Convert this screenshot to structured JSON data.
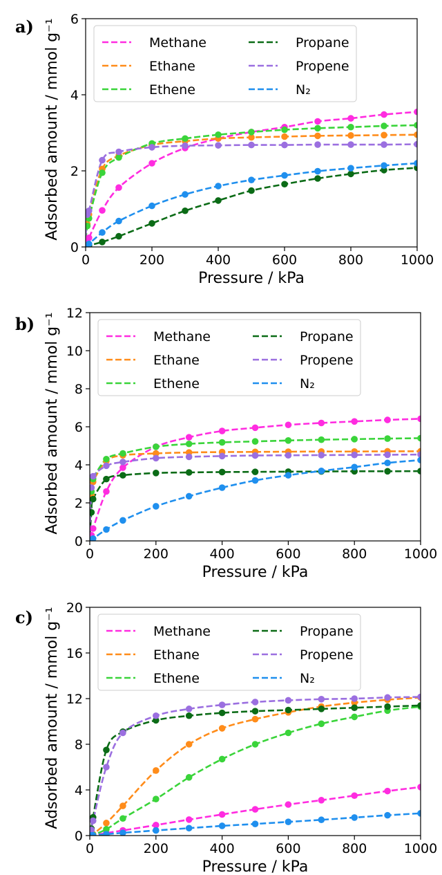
{
  "chart_data": [
    {
      "panel": "a)",
      "type": "line",
      "xlabel": "Pressure / kPa",
      "ylabel": "Adsorbed amount / mmol g⁻¹",
      "xlim": [
        0,
        1000
      ],
      "ylim": [
        0,
        6
      ],
      "xticks": [
        0,
        200,
        400,
        600,
        800,
        1000
      ],
      "yticks": [
        0,
        2,
        4,
        6
      ],
      "legend": "top-left, two columns",
      "series": [
        {
          "name": "Methane",
          "color": "#ff2ce0",
          "x": [
            0,
            5,
            10,
            50,
            100,
            200,
            300,
            400,
            500,
            600,
            700,
            800,
            900,
            1000
          ],
          "y": [
            0.03,
            0.12,
            0.24,
            0.96,
            1.56,
            2.2,
            2.6,
            2.85,
            3.02,
            3.15,
            3.3,
            3.38,
            3.48,
            3.55
          ]
        },
        {
          "name": "Ethane",
          "color": "#ff8c1a",
          "x": [
            0,
            5,
            10,
            50,
            100,
            200,
            300,
            400,
            500,
            600,
            700,
            800,
            900,
            1000
          ],
          "y": [
            0.2,
            0.6,
            0.85,
            2.05,
            2.4,
            2.68,
            2.78,
            2.85,
            2.88,
            2.9,
            2.92,
            2.93,
            2.94,
            2.95
          ]
        },
        {
          "name": "Ethene",
          "color": "#3ad43a",
          "x": [
            0,
            5,
            10,
            50,
            100,
            200,
            300,
            400,
            500,
            600,
            700,
            800,
            900,
            1000
          ],
          "y": [
            0.2,
            0.55,
            0.75,
            1.95,
            2.35,
            2.72,
            2.85,
            2.95,
            3.02,
            3.08,
            3.12,
            3.15,
            3.18,
            3.2
          ]
        },
        {
          "name": "Propane",
          "color": "#0b6b16",
          "x": [
            0,
            5,
            10,
            50,
            100,
            200,
            300,
            400,
            500,
            600,
            700,
            800,
            900,
            1000
          ],
          "y": [
            0.0,
            0.02,
            0.04,
            0.13,
            0.28,
            0.62,
            0.95,
            1.22,
            1.48,
            1.65,
            1.8,
            1.92,
            2.02,
            2.08
          ]
        },
        {
          "name": "Propene",
          "color": "#9b6fe0",
          "x": [
            0,
            5,
            10,
            50,
            100,
            200,
            300,
            400,
            500,
            600,
            700,
            800,
            900,
            1000
          ],
          "y": [
            0.3,
            0.85,
            0.95,
            2.28,
            2.5,
            2.62,
            2.66,
            2.67,
            2.68,
            2.68,
            2.69,
            2.69,
            2.69,
            2.7
          ]
        },
        {
          "name": "N₂",
          "color": "#1f8fee",
          "x": [
            0,
            5,
            10,
            50,
            100,
            200,
            300,
            400,
            500,
            600,
            700,
            800,
            900,
            1000
          ],
          "y": [
            0.0,
            0.04,
            0.08,
            0.38,
            0.68,
            1.08,
            1.38,
            1.6,
            1.76,
            1.88,
            1.99,
            2.07,
            2.14,
            2.2
          ]
        }
      ]
    },
    {
      "panel": "b)",
      "type": "line",
      "xlabel": "Pressure / kPa",
      "ylabel": "Adsorbed amount / mmol g⁻¹",
      "xlim": [
        0,
        1000
      ],
      "ylim": [
        0,
        12
      ],
      "xticks": [
        0,
        200,
        400,
        600,
        800,
        1000
      ],
      "yticks": [
        0,
        2,
        4,
        6,
        8,
        10,
        12
      ],
      "legend": "top-left, two columns",
      "series": [
        {
          "name": "Methane",
          "color": "#ff2ce0",
          "x": [
            0,
            5,
            10,
            50,
            100,
            200,
            300,
            400,
            500,
            600,
            700,
            800,
            900,
            1000
          ],
          "y": [
            0.05,
            0.3,
            0.65,
            2.6,
            3.85,
            4.95,
            5.45,
            5.78,
            5.95,
            6.1,
            6.2,
            6.28,
            6.36,
            6.42
          ]
        },
        {
          "name": "Ethane",
          "color": "#ff8c1a",
          "x": [
            0,
            5,
            10,
            50,
            100,
            200,
            300,
            400,
            500,
            600,
            700,
            800,
            900,
            1000
          ],
          "y": [
            0.5,
            2.4,
            3.1,
            4.2,
            4.5,
            4.6,
            4.65,
            4.67,
            4.68,
            4.69,
            4.7,
            4.7,
            4.71,
            4.71
          ]
        },
        {
          "name": "Ethene",
          "color": "#3ad43a",
          "x": [
            0,
            5,
            10,
            50,
            100,
            200,
            300,
            400,
            500,
            600,
            700,
            800,
            900,
            1000
          ],
          "y": [
            0.5,
            2.6,
            3.25,
            4.3,
            4.6,
            4.95,
            5.1,
            5.18,
            5.23,
            5.28,
            5.32,
            5.35,
            5.38,
            5.4
          ]
        },
        {
          "name": "Propane",
          "color": "#0b6b16",
          "x": [
            0,
            5,
            10,
            50,
            100,
            200,
            300,
            400,
            500,
            600,
            700,
            800,
            900,
            1000
          ],
          "y": [
            0.3,
            1.5,
            2.2,
            3.25,
            3.45,
            3.57,
            3.6,
            3.62,
            3.63,
            3.64,
            3.65,
            3.66,
            3.66,
            3.67
          ]
        },
        {
          "name": "Propene",
          "color": "#9b6fe0",
          "x": [
            0,
            5,
            10,
            50,
            100,
            200,
            300,
            400,
            500,
            600,
            700,
            800,
            900,
            1000
          ],
          "y": [
            0.5,
            2.8,
            3.4,
            3.95,
            4.15,
            4.35,
            4.42,
            4.46,
            4.49,
            4.5,
            4.51,
            4.52,
            4.53,
            4.54
          ]
        },
        {
          "name": "N₂",
          "color": "#1f8fee",
          "x": [
            0,
            5,
            10,
            50,
            100,
            200,
            300,
            400,
            500,
            600,
            700,
            800,
            900,
            1000
          ],
          "y": [
            0.0,
            0.06,
            0.12,
            0.6,
            1.08,
            1.82,
            2.35,
            2.8,
            3.18,
            3.45,
            3.68,
            3.88,
            4.1,
            4.25
          ]
        }
      ]
    },
    {
      "panel": "c)",
      "type": "line",
      "xlabel": "Pressure / kPa",
      "ylabel": "Adsorbed amount / mmol g⁻¹",
      "xlim": [
        0,
        1000
      ],
      "ylim": [
        0,
        20
      ],
      "xticks": [
        0,
        200,
        400,
        600,
        800,
        1000
      ],
      "yticks": [
        0,
        4,
        8,
        12,
        16,
        20
      ],
      "legend": "top-left, two columns",
      "series": [
        {
          "name": "Methane",
          "color": "#ff2ce0",
          "x": [
            0,
            5,
            10,
            50,
            100,
            200,
            300,
            400,
            500,
            600,
            700,
            800,
            900,
            1000
          ],
          "y": [
            0.0,
            0.02,
            0.04,
            0.22,
            0.45,
            0.92,
            1.4,
            1.85,
            2.3,
            2.72,
            3.1,
            3.5,
            3.9,
            4.25
          ]
        },
        {
          "name": "Ethane",
          "color": "#ff8c1a",
          "x": [
            0,
            5,
            10,
            50,
            100,
            200,
            300,
            400,
            500,
            600,
            700,
            800,
            900,
            1000
          ],
          "y": [
            0.0,
            0.05,
            0.12,
            1.1,
            2.6,
            5.7,
            8.0,
            9.4,
            10.2,
            10.8,
            11.3,
            11.65,
            11.9,
            12.1
          ]
        },
        {
          "name": "Ethene",
          "color": "#3ad43a",
          "x": [
            0,
            5,
            10,
            50,
            100,
            200,
            300,
            400,
            500,
            600,
            700,
            800,
            900,
            1000
          ],
          "y": [
            0.0,
            0.02,
            0.06,
            0.55,
            1.5,
            3.2,
            5.1,
            6.7,
            8.0,
            9.0,
            9.8,
            10.4,
            10.95,
            11.3
          ]
        },
        {
          "name": "Propane",
          "color": "#0b6b16",
          "x": [
            0,
            5,
            10,
            50,
            100,
            200,
            300,
            400,
            500,
            600,
            700,
            800,
            900,
            1000
          ],
          "y": [
            0.0,
            0.6,
            1.6,
            7.5,
            9.1,
            10.1,
            10.5,
            10.75,
            10.9,
            11.0,
            11.1,
            11.2,
            11.3,
            11.4
          ]
        },
        {
          "name": "Propene",
          "color": "#9b6fe0",
          "x": [
            0,
            5,
            10,
            50,
            100,
            200,
            300,
            400,
            500,
            600,
            700,
            800,
            900,
            1000
          ],
          "y": [
            0.0,
            0.5,
            1.3,
            6.0,
            9.0,
            10.5,
            11.1,
            11.45,
            11.7,
            11.85,
            11.95,
            12.0,
            12.1,
            12.15
          ]
        },
        {
          "name": "N₂",
          "color": "#1f8fee",
          "x": [
            0,
            5,
            10,
            50,
            100,
            200,
            300,
            400,
            500,
            600,
            700,
            800,
            900,
            1000
          ],
          "y": [
            0.0,
            0.01,
            0.02,
            0.12,
            0.24,
            0.45,
            0.65,
            0.85,
            1.02,
            1.2,
            1.38,
            1.58,
            1.78,
            1.95
          ]
        }
      ]
    }
  ]
}
